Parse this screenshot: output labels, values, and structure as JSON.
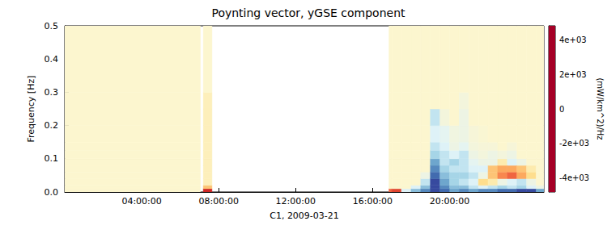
{
  "chart_data": {
    "type": "heatmap",
    "title": "Poynting vector, yGSE component",
    "x_label": "C1, 2009-03-21",
    "y_label": "Frequency [Hz]",
    "xlim": [
      0,
      24.9
    ],
    "xticks": [
      {
        "value": 4,
        "label": "04:00:00"
      },
      {
        "value": 8,
        "label": "08:00:00"
      },
      {
        "value": 12,
        "label": "12:00:00"
      },
      {
        "value": 16,
        "label": "16:00:00"
      },
      {
        "value": 20,
        "label": "20:00:00"
      }
    ],
    "ylim": [
      0,
      0.5
    ],
    "yticks": [
      {
        "value": 0,
        "label": "0.0"
      },
      0.1,
      0.2,
      0.3,
      0.4,
      0.5
    ],
    "time_edges": [
      0,
      7.05,
      7.2,
      7.65,
      16.85,
      17.0,
      17.5,
      18.0,
      18.5,
      19.0,
      19.5,
      20.0,
      20.5,
      21.0,
      21.5,
      22.0,
      22.5,
      23.0,
      23.5,
      24.0,
      24.5,
      24.9
    ],
    "freq_edges": [
      0,
      0.01,
      0.02,
      0.04,
      0.06,
      0.08,
      0.1,
      0.125,
      0.15,
      0.2,
      0.25,
      0.3,
      0.5
    ],
    "cells": [
      [
        0,
        0,
        0,
        0,
        0,
        0,
        0,
        0,
        0,
        0,
        0,
        0
      ],
      [
        null,
        null,
        null,
        null,
        null,
        null,
        null,
        null,
        null,
        null,
        null,
        null
      ],
      [
        -4000,
        -1500,
        -300,
        -300,
        -300,
        -300,
        -300,
        -300,
        -300,
        -300,
        -300,
        0
      ],
      [
        null,
        null,
        null,
        null,
        null,
        null,
        null,
        null,
        null,
        null,
        null,
        null
      ],
      [
        -3000,
        0,
        0,
        0,
        0,
        0,
        0,
        0,
        0,
        0,
        0,
        0
      ],
      [
        -3500,
        0,
        0,
        0,
        0,
        0,
        0,
        0,
        0,
        0,
        0,
        0
      ],
      [
        1000,
        0,
        0,
        0,
        0,
        0,
        0,
        0,
        0,
        0,
        0,
        0
      ],
      [
        2500,
        1000,
        0,
        0,
        0,
        0,
        0,
        0,
        0,
        0,
        0,
        0
      ],
      [
        3500,
        2500,
        1500,
        500,
        0,
        0,
        0,
        0,
        0,
        0,
        0,
        0
      ],
      [
        4500,
        4500,
        4500,
        4000,
        3500,
        3000,
        2000,
        1500,
        1000,
        1500,
        0,
        0
      ],
      [
        4000,
        3500,
        3000,
        2500,
        2000,
        1500,
        1500,
        1000,
        800,
        300,
        0,
        0
      ],
      [
        3000,
        2500,
        2000,
        2000,
        1500,
        2000,
        1000,
        500,
        400,
        0,
        0,
        0
      ],
      [
        3500,
        2500,
        1500,
        2000,
        1500,
        1500,
        1500,
        800,
        500,
        500,
        300,
        0
      ],
      [
        3000,
        1500,
        1000,
        1500,
        1000,
        800,
        500,
        300,
        200,
        0,
        0,
        0
      ],
      [
        3500,
        1000,
        -1000,
        500,
        1000,
        500,
        300,
        200,
        100,
        0,
        0,
        0
      ],
      [
        3500,
        1500,
        -500,
        -1500,
        -1500,
        500,
        500,
        200,
        0,
        0,
        0,
        0
      ],
      [
        4000,
        2000,
        500,
        -2500,
        -2000,
        -500,
        300,
        0,
        0,
        0,
        0,
        0
      ],
      [
        4000,
        1500,
        1000,
        -3000,
        -2000,
        1000,
        500,
        200,
        0,
        0,
        0,
        0
      ],
      [
        4500,
        2000,
        1500,
        -2000,
        -1500,
        500,
        0,
        0,
        0,
        0,
        0,
        0
      ],
      [
        4500,
        1000,
        500,
        -1000,
        -500,
        0,
        0,
        0,
        0,
        0,
        0,
        0
      ],
      [
        3000,
        500,
        0,
        0,
        0,
        0,
        0,
        0,
        0,
        0,
        0,
        0
      ]
    ],
    "colorbar": {
      "label": "(mW/km^2)/Hz",
      "range": [
        -4800,
        4800
      ],
      "ticks": [
        {
          "value": -4000,
          "label": "-4e+03"
        },
        {
          "value": -2000,
          "label": "-2e+03"
        },
        0,
        {
          "value": 2000,
          "label": "2e+03"
        },
        {
          "value": 4000,
          "label": "4e+03"
        }
      ]
    }
  }
}
